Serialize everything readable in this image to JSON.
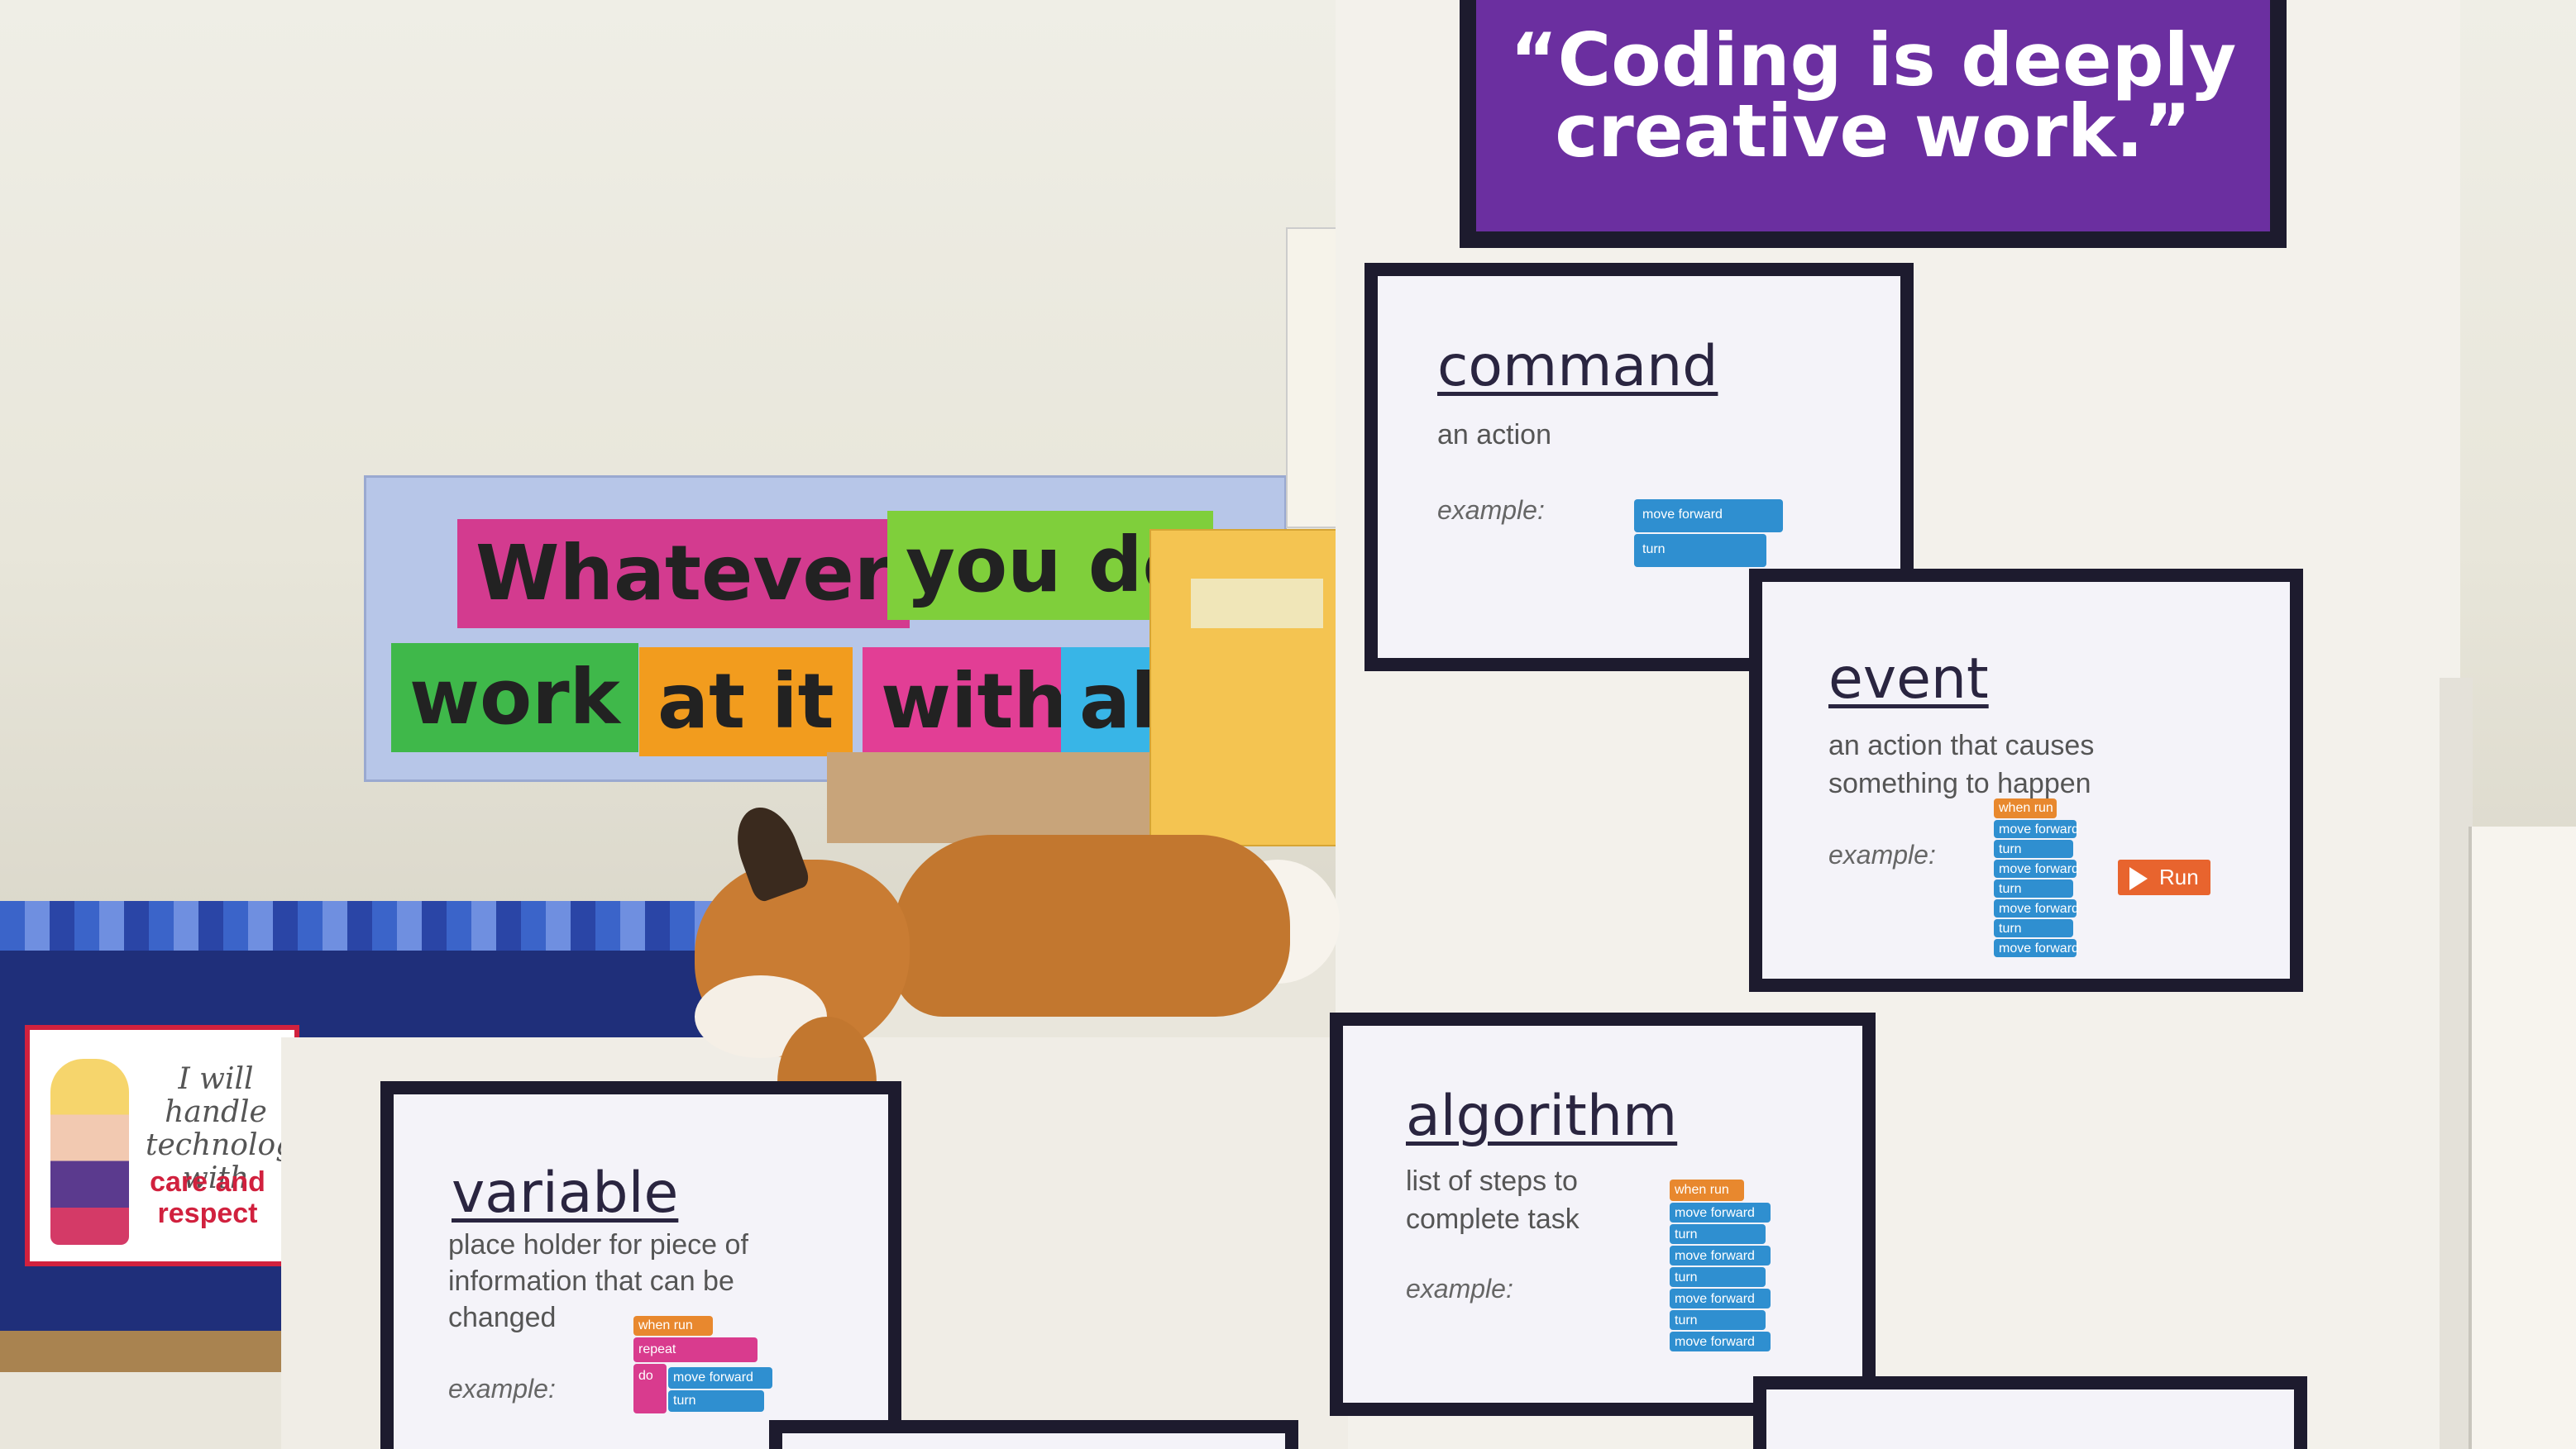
{
  "quote": {
    "line1": "“Coding is deeply",
    "line2": "creative work.”"
  },
  "banner": {
    "words": [
      "Whatever",
      "you do",
      "work",
      "at it",
      "with",
      "al"
    ]
  },
  "tech_poster": {
    "line1": "I will handle technology with",
    "line2": "care and respect"
  },
  "cards": {
    "command": {
      "term": "command",
      "definition": "an action",
      "example_label": "example:",
      "blocks": [
        "move forward",
        "turn"
      ]
    },
    "event": {
      "term": "event",
      "definition_line1": "an action that causes",
      "definition_line2": "something to happen",
      "example_label": "example:",
      "run_label": "Run",
      "blocks": [
        "when run",
        "move forward",
        "turn",
        "move forward",
        "turn",
        "move forward",
        "turn",
        "move forward"
      ]
    },
    "algorithm": {
      "term": "algorithm",
      "definition_line1": "list of steps to",
      "definition_line2": "complete task",
      "example_label": "example:",
      "blocks": [
        "when run",
        "move forward",
        "turn",
        "move forward",
        "turn",
        "move forward",
        "turn",
        "move forward"
      ]
    },
    "variable": {
      "term": "variable",
      "definition_line1": "place holder for piece of",
      "definition_line2": "information that can be",
      "definition_line3": "changed",
      "example_label": "example:",
      "blocks": [
        "when run",
        "repeat",
        "do",
        "move forward",
        "turn"
      ]
    }
  },
  "colors": {
    "quote_bg": "#6b2fa0",
    "card_border": "#1d1b2e",
    "block_blue": "#2f8fd0",
    "block_orange": "#e8882e",
    "block_pink": "#d93b8e",
    "run_button": "#e8642e"
  }
}
